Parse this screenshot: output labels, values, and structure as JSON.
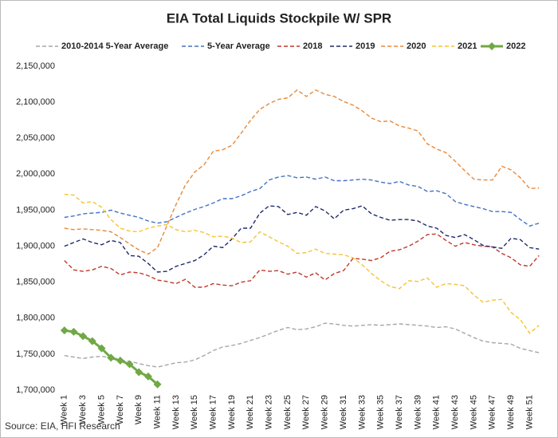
{
  "chart_data": {
    "type": "line",
    "title": "EIA Total Liquids Stockpile W/ SPR",
    "source": "Source: EIA, HFI Research",
    "categories": [
      "Week 1",
      null,
      "Week 3",
      null,
      "Week 5",
      null,
      "Week 7",
      null,
      "Week 9",
      null,
      "Week 11",
      null,
      "Week 13",
      null,
      "Week 15",
      null,
      "Week 17",
      null,
      "Week 19",
      null,
      "Week 21",
      null,
      "Week 23",
      null,
      "Week 25",
      null,
      "Week 27",
      null,
      "Week 29",
      null,
      "Week 31",
      null,
      "Week 33",
      null,
      "Week 35",
      null,
      "Week 37",
      null,
      "Week 39",
      null,
      "Week 41",
      null,
      "Week 43",
      null,
      "Week 45",
      null,
      "Week 47",
      null,
      "Week 49",
      null,
      "Week 51",
      null
    ],
    "ylim": [
      1700000,
      2150000
    ],
    "yticks": [
      {
        "value": 1700000,
        "label": "1,700,000"
      },
      {
        "value": 1750000,
        "label": "1,750,000"
      },
      {
        "value": 1800000,
        "label": "1,800,000"
      },
      {
        "value": 1850000,
        "label": "1,850,000"
      },
      {
        "value": 1900000,
        "label": "1,900,000"
      },
      {
        "value": 1950000,
        "label": "1,950,000"
      },
      {
        "value": 2000000,
        "label": "2,000,000"
      },
      {
        "value": 2050000,
        "label": "2,050,000"
      },
      {
        "value": 2100000,
        "label": "2,100,000"
      },
      {
        "value": 2150000,
        "label": "2,150,000"
      }
    ],
    "grid": false,
    "series": [
      {
        "name": "2010-2014 5-Year Average",
        "color": "#a6a6a6",
        "style": "dashed",
        "values": [
          1748000,
          1746000,
          1744000,
          1746000,
          1747000,
          1745000,
          1742000,
          1740000,
          1737000,
          1734000,
          1732000,
          1735000,
          1738000,
          1739000,
          1742000,
          1748000,
          1755000,
          1760000,
          1762000,
          1765000,
          1769000,
          1773000,
          1778000,
          1783000,
          1787000,
          1784000,
          1785000,
          1788000,
          1793000,
          1792000,
          1790000,
          1789000,
          1790000,
          1791000,
          1790000,
          1791000,
          1792000,
          1791000,
          1790000,
          1789000,
          1787000,
          1788000,
          1785000,
          1779000,
          1773000,
          1768000,
          1766000,
          1765000,
          1764000,
          1758000,
          1755000,
          1752000
        ]
      },
      {
        "name": "5-Year Average",
        "color": "#4472c4",
        "style": "dashed",
        "values": [
          1940000,
          1942000,
          1945000,
          1946000,
          1947000,
          1950000,
          1946000,
          1943000,
          1940000,
          1935000,
          1932000,
          1934000,
          1940000,
          1946000,
          1951000,
          1955000,
          1960000,
          1966000,
          1966000,
          1970000,
          1976000,
          1980000,
          1992000,
          1996000,
          1998000,
          1995000,
          1996000,
          1993000,
          1996000,
          1991000,
          1991000,
          1992000,
          1993000,
          1992000,
          1989000,
          1987000,
          1990000,
          1985000,
          1983000,
          1976000,
          1977000,
          1973000,
          1962000,
          1958000,
          1955000,
          1952000,
          1948000,
          1948000,
          1947000,
          1937000,
          1928000,
          1932000
        ]
      },
      {
        "name": "2018",
        "color": "#c0392b",
        "style": "dashed",
        "values": [
          1880000,
          1867000,
          1865000,
          1867000,
          1872000,
          1869000,
          1860000,
          1864000,
          1863000,
          1859000,
          1853000,
          1851000,
          1848000,
          1854000,
          1843000,
          1843000,
          1848000,
          1846000,
          1845000,
          1850000,
          1852000,
          1867000,
          1865000,
          1866000,
          1861000,
          1864000,
          1857000,
          1863000,
          1853000,
          1862000,
          1866000,
          1883000,
          1882000,
          1880000,
          1884000,
          1893000,
          1895000,
          1900000,
          1907000,
          1916000,
          1917000,
          1908000,
          1900000,
          1905000,
          1902000,
          1900000,
          1899000,
          1890000,
          1884000,
          1874000,
          1872000,
          1887000
        ]
      },
      {
        "name": "2019",
        "color": "#1f2a6b",
        "style": "dashed",
        "values": [
          1900000,
          1905000,
          1910000,
          1905000,
          1902000,
          1908000,
          1905000,
          1887000,
          1886000,
          1876000,
          1864000,
          1865000,
          1872000,
          1876000,
          1880000,
          1888000,
          1900000,
          1898000,
          1910000,
          1925000,
          1925000,
          1946000,
          1956000,
          1955000,
          1944000,
          1947000,
          1943000,
          1955000,
          1949000,
          1938000,
          1950000,
          1952000,
          1956000,
          1945000,
          1940000,
          1936000,
          1937000,
          1937000,
          1935000,
          1928000,
          1925000,
          1915000,
          1912000,
          1916000,
          1909000,
          1901000,
          1899000,
          1897000,
          1911000,
          1909000,
          1898000,
          1896000
        ]
      },
      {
        "name": "2020",
        "color": "#e8893a",
        "style": "dashed",
        "values": [
          1925000,
          1923000,
          1924000,
          1923000,
          1922000,
          1920000,
          1912000,
          1903000,
          1895000,
          1889000,
          1898000,
          1928000,
          1958000,
          1985000,
          2003000,
          2013000,
          2032000,
          2034000,
          2040000,
          2057000,
          2075000,
          2090000,
          2098000,
          2104000,
          2106000,
          2117000,
          2108000,
          2117000,
          2111000,
          2108000,
          2101000,
          2096000,
          2088000,
          2078000,
          2073000,
          2074000,
          2067000,
          2064000,
          2060000,
          2042000,
          2035000,
          2030000,
          2018000,
          2005000,
          1993000,
          1992000,
          1992000,
          2011000,
          2006000,
          1995000,
          1980000,
          1981000
        ]
      },
      {
        "name": "2021",
        "color": "#f5c431",
        "style": "dashed",
        "values": [
          1972000,
          1971000,
          1960000,
          1962000,
          1954000,
          1937000,
          1925000,
          1921000,
          1920000,
          1925000,
          1928000,
          1930000,
          1923000,
          1920000,
          1922000,
          1919000,
          1913000,
          1914000,
          1911000,
          1905000,
          1906000,
          1920000,
          1913000,
          1906000,
          1900000,
          1890000,
          1891000,
          1896000,
          1890000,
          1889000,
          1888000,
          1884000,
          1874000,
          1862000,
          1852000,
          1844000,
          1841000,
          1852000,
          1851000,
          1856000,
          1843000,
          1848000,
          1847000,
          1845000,
          1832000,
          1822000,
          1825000,
          1826000,
          1808000,
          1798000,
          1779000,
          1790000
        ]
      },
      {
        "name": "2022",
        "color": "#70a845",
        "style": "solid",
        "marker": "diamond",
        "values": [
          1783000,
          1781000,
          1775000,
          1768000,
          1758000,
          1745000,
          1741000,
          1736000,
          1725000,
          1719000,
          1708000,
          null,
          null,
          null,
          null,
          null,
          null,
          null,
          null,
          null,
          null,
          null,
          null,
          null,
          null,
          null,
          null,
          null,
          null,
          null,
          null,
          null,
          null,
          null,
          null,
          null,
          null,
          null,
          null,
          null,
          null,
          null,
          null,
          null,
          null,
          null,
          null,
          null,
          null,
          null,
          null,
          null
        ]
      }
    ]
  }
}
